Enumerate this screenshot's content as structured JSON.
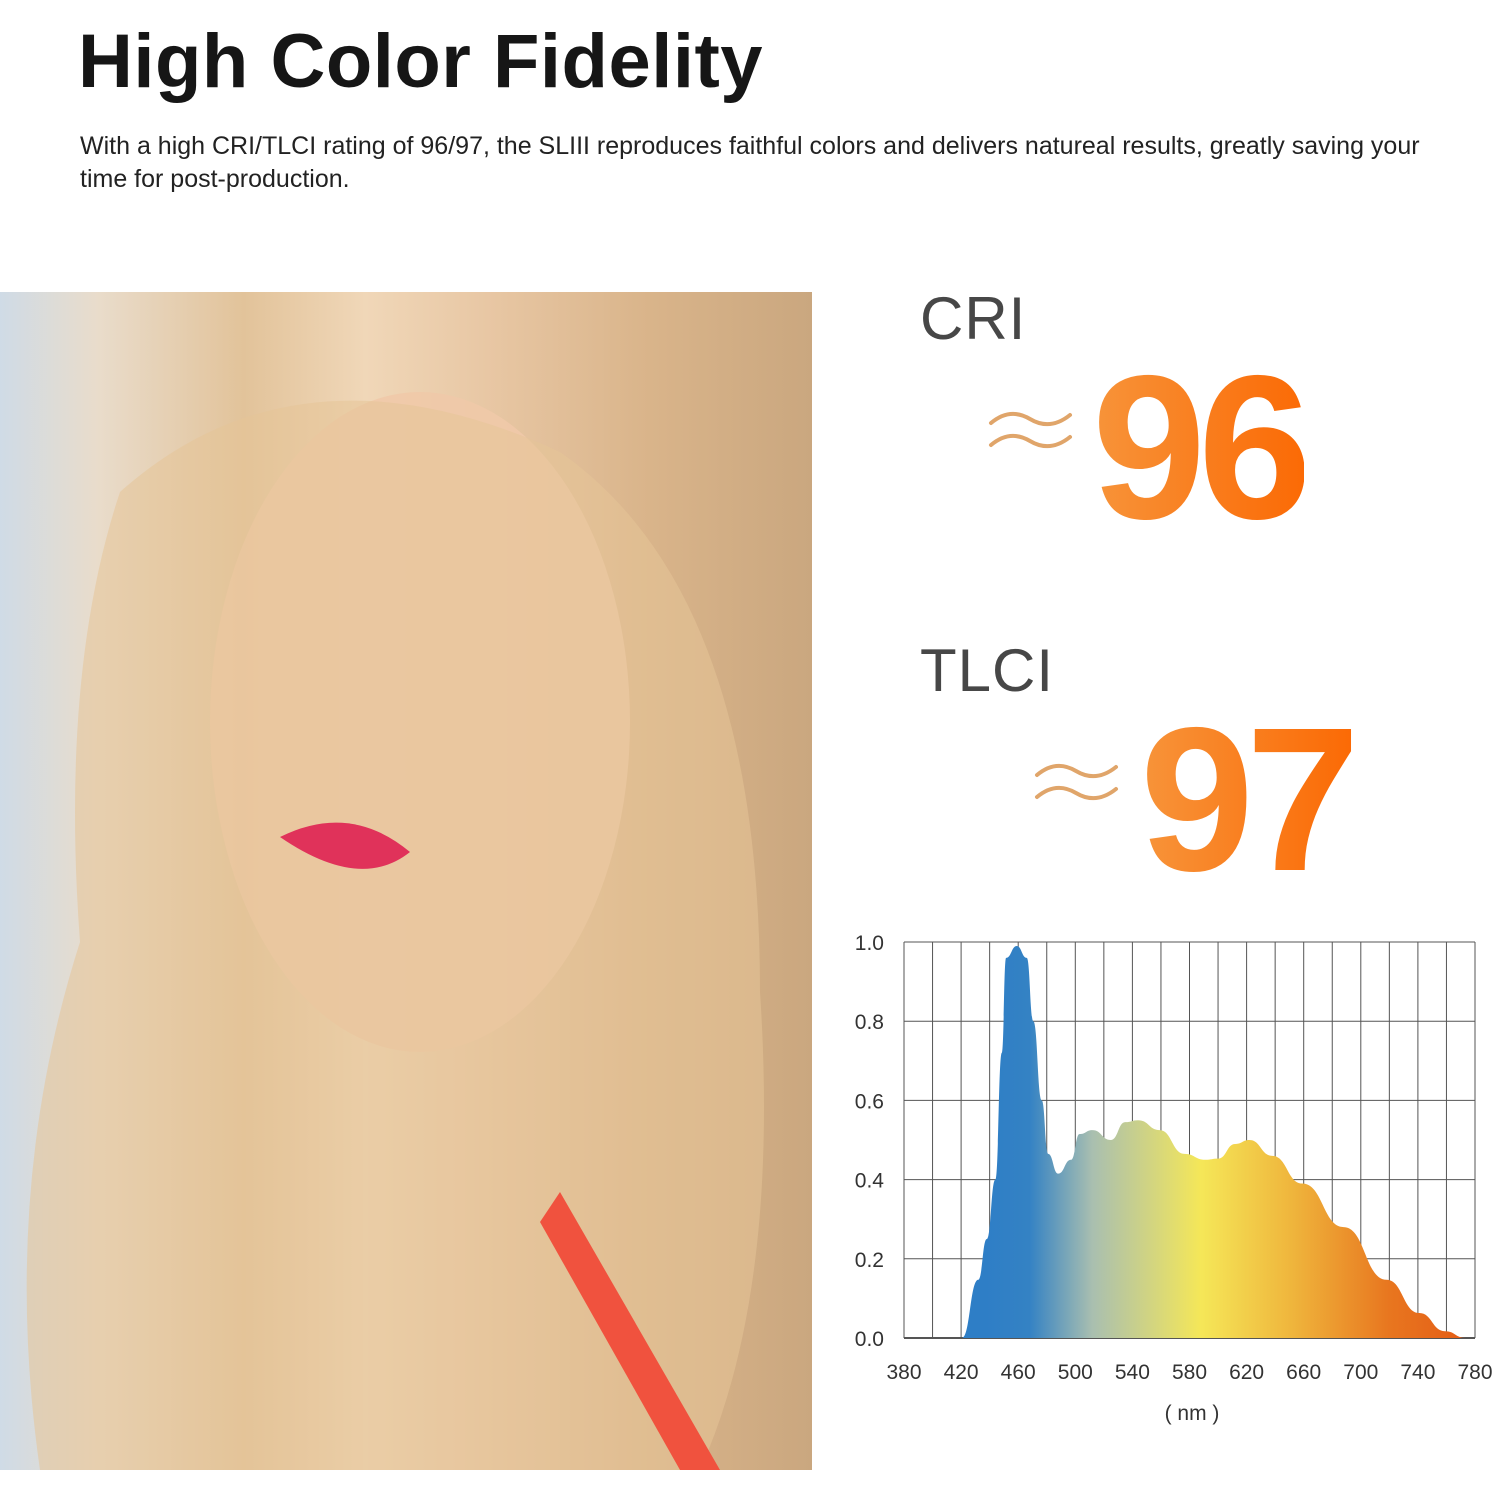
{
  "header": {
    "title": "High Color Fidelity",
    "description": "With a high CRI/TLCI rating of 96/97, the SLIII reproduces faithful colors and delivers natureal results, greatly saving your time for post-production."
  },
  "metrics": [
    {
      "label": "CRI",
      "approx_icon": "approximately-equal-icon",
      "value": "96"
    },
    {
      "label": "TLCI",
      "approx_icon": "approximately-equal-icon",
      "value": "97"
    }
  ],
  "colors": {
    "accent_start": "#f7943a",
    "accent_end": "#fb6a05",
    "approx": "#e0a56a"
  },
  "chart_data": {
    "type": "area",
    "xlabel": "( nm )",
    "ylabel": "",
    "xlim": [
      380,
      780
    ],
    "ylim": [
      0,
      1.0
    ],
    "xticks": [
      "380",
      "420",
      "460",
      "500",
      "540",
      "580",
      "620",
      "660",
      "700",
      "740",
      "780"
    ],
    "yticks": [
      "0.0",
      "0.2",
      "0.4",
      "0.6",
      "0.8",
      "1.0"
    ],
    "grid": true,
    "fill": "spectral gradient (blue to orange)",
    "x": [
      420.6,
      432,
      438,
      444,
      448.5,
      451.5,
      459,
      466,
      470.6,
      476.5,
      481,
      488,
      497,
      503,
      512,
      525,
      535,
      544,
      559,
      576.5,
      591,
      600,
      612,
      622,
      638,
      659,
      688,
      718,
      741,
      759,
      773.5
    ],
    "y": [
      0,
      0.147,
      0.25,
      0.4,
      0.72,
      0.96,
      0.99,
      0.96,
      0.8,
      0.6,
      0.465,
      0.415,
      0.45,
      0.515,
      0.525,
      0.5,
      0.545,
      0.55,
      0.525,
      0.465,
      0.45,
      0.453,
      0.49,
      0.5,
      0.46,
      0.39,
      0.28,
      0.147,
      0.063,
      0.017,
      0
    ]
  }
}
